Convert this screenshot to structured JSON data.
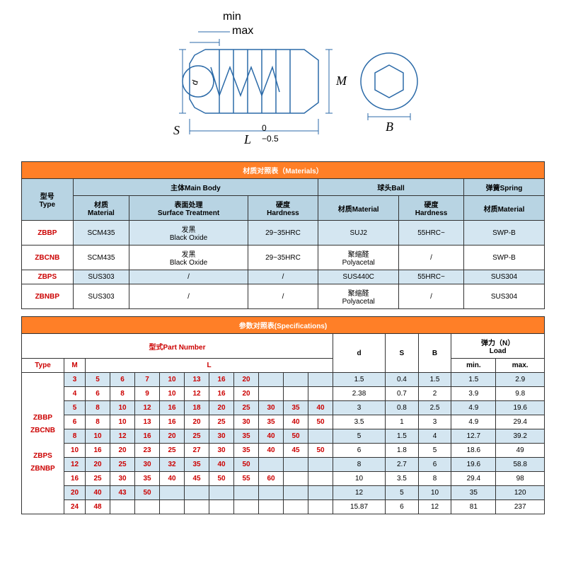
{
  "diagram": {
    "labels": {
      "min": "min",
      "max": "max",
      "S": "S",
      "L": "L",
      "Ltol_top": "0",
      "Ltol_bot": "−0.5",
      "M": "M",
      "B": "B",
      "d": "d"
    },
    "colors": {
      "stroke": "#2b6aa8",
      "dim": "#2b6aa8",
      "text": "#000"
    },
    "stroke_width": 1.5
  },
  "materials": {
    "title": "材质对照表（Materials）",
    "headers": {
      "type": "型号\nType",
      "mainbody": "主体Main Body",
      "ball": "球头Ball",
      "spring": "弹簧Spring",
      "material": "材质\nMaterial",
      "surface": "表面处理\nSurface Treatment",
      "hardness": "硬度\nHardness",
      "ballmat": "材质Material",
      "ballhard": "硬度\nHardness",
      "springmat": "材质Material"
    },
    "rows": [
      {
        "type": "ZBBP",
        "mat": "SCM435",
        "surf": "发黑\nBlack Oxide",
        "hard": "29~35HRC",
        "ballmat": "SUJ2",
        "ballhard": "55HRC~",
        "spring": "SWP-B",
        "bg": "blue"
      },
      {
        "type": "ZBCNB",
        "mat": "SCM435",
        "surf": "发黑\nBlack Oxide",
        "hard": "29~35HRC",
        "ballmat": "聚缩醛\nPolyacetal",
        "ballhard": "/",
        "spring": "SWP-B",
        "bg": "white"
      },
      {
        "type": "ZBPS",
        "mat": "SUS303",
        "surf": "/",
        "hard": "/",
        "ballmat": "SUS440C",
        "ballhard": "55HRC~",
        "spring": "SUS304",
        "bg": "blue"
      },
      {
        "type": "ZBNBP",
        "mat": "SUS303",
        "surf": "/",
        "hard": "/",
        "ballmat": "聚缩醛\nPolyacetal",
        "ballhard": "/",
        "spring": "SUS304",
        "bg": "white"
      }
    ]
  },
  "specs": {
    "title": "参数对照表(Specifications)",
    "headers": {
      "partno": "型式Part Number",
      "type": "Type",
      "M": "M",
      "L": "L",
      "d": "d",
      "S": "S",
      "B": "B",
      "load": "弹力（N）\nLoad",
      "min": "min.",
      "max": "max."
    },
    "types": "ZBBP\nZBCNB\n\nZBPS\nZBNBP",
    "rows": [
      {
        "M": "3",
        "L": [
          "5",
          "6",
          "7",
          "10",
          "13",
          "16",
          "20",
          "",
          "",
          ""
        ],
        "d": "1.5",
        "S": "0.4",
        "B": "1.5",
        "min": "1.5",
        "max": "2.9",
        "bg": "blue"
      },
      {
        "M": "4",
        "L": [
          "6",
          "8",
          "9",
          "10",
          "12",
          "16",
          "20",
          "",
          "",
          ""
        ],
        "d": "2.38",
        "S": "0.7",
        "B": "2",
        "min": "3.9",
        "max": "9.8",
        "bg": "white"
      },
      {
        "M": "5",
        "L": [
          "8",
          "10",
          "12",
          "16",
          "18",
          "20",
          "25",
          "30",
          "35",
          "40"
        ],
        "d": "3",
        "S": "0.8",
        "B": "2.5",
        "min": "4.9",
        "max": "19.6",
        "bg": "blue"
      },
      {
        "M": "6",
        "L": [
          "8",
          "10",
          "13",
          "16",
          "20",
          "25",
          "30",
          "35",
          "40",
          "50"
        ],
        "d": "3.5",
        "S": "1",
        "B": "3",
        "min": "4.9",
        "max": "29.4",
        "bg": "white"
      },
      {
        "M": "8",
        "L": [
          "10",
          "12",
          "16",
          "20",
          "25",
          "30",
          "35",
          "40",
          "50",
          ""
        ],
        "d": "5",
        "S": "1.5",
        "B": "4",
        "min": "12.7",
        "max": "39.2",
        "bg": "blue"
      },
      {
        "M": "10",
        "L": [
          "16",
          "20",
          "23",
          "25",
          "27",
          "30",
          "35",
          "40",
          "45",
          "50"
        ],
        "d": "6",
        "S": "1.8",
        "B": "5",
        "min": "18.6",
        "max": "49",
        "bg": "white"
      },
      {
        "M": "12",
        "L": [
          "20",
          "25",
          "30",
          "32",
          "35",
          "40",
          "50",
          "",
          "",
          ""
        ],
        "d": "8",
        "S": "2.7",
        "B": "6",
        "min": "19.6",
        "max": "58.8",
        "bg": "blue"
      },
      {
        "M": "16",
        "L": [
          "25",
          "30",
          "35",
          "40",
          "45",
          "50",
          "55",
          "60",
          "",
          ""
        ],
        "d": "10",
        "S": "3.5",
        "B": "8",
        "min": "29.4",
        "max": "98",
        "bg": "white"
      },
      {
        "M": "20",
        "L": [
          "40",
          "43",
          "50",
          "",
          "",
          "",
          "",
          "",
          "",
          ""
        ],
        "d": "12",
        "S": "5",
        "B": "10",
        "min": "35",
        "max": "120",
        "bg": "blue"
      },
      {
        "M": "24",
        "L": [
          "48",
          "",
          "",
          "",
          "",
          "",
          "",
          "",
          "",
          ""
        ],
        "d": "15.87",
        "S": "6",
        "B": "12",
        "min": "81",
        "max": "237",
        "bg": "white"
      }
    ]
  }
}
